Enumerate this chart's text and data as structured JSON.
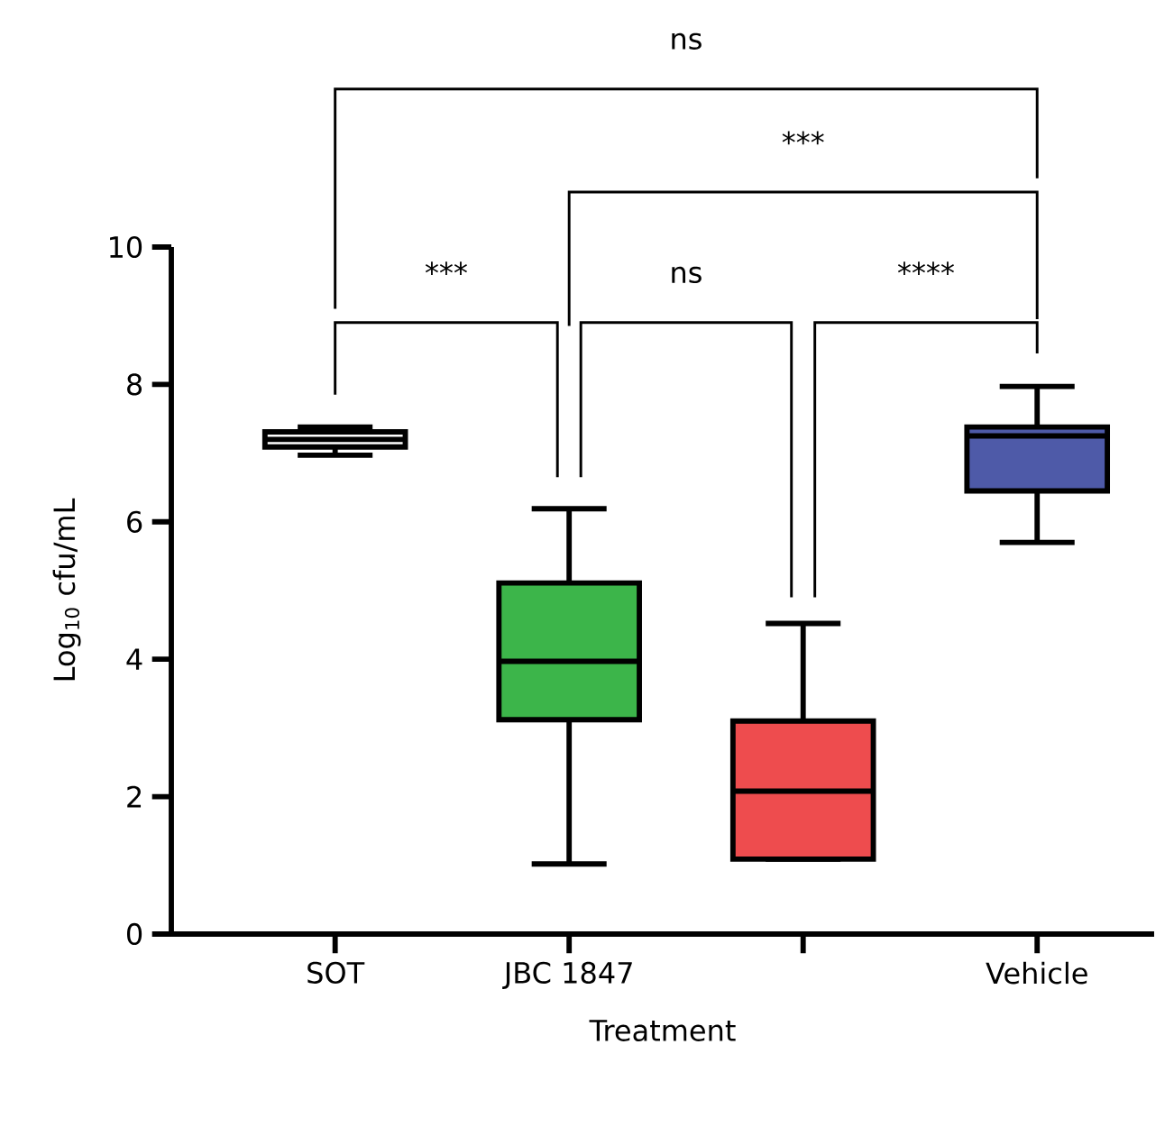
{
  "chart_data": {
    "type": "box",
    "xlabel": "Treatment",
    "ylabel": "Log$_{10}$ cfu/mL",
    "categories": [
      "SOT",
      "JBC 1847",
      null,
      "Vehicle"
    ],
    "colors": [
      "#ffffff",
      "#3cb54a",
      "#ee4c4e",
      "#4e5aa8"
    ],
    "boxes": [
      {
        "low": 6.97,
        "q1": 7.09,
        "median": 7.2,
        "q3": 7.31,
        "high": 7.38
      },
      {
        "low": 1.02,
        "q1": 3.12,
        "median": 3.97,
        "q3": 5.11,
        "high": 6.19
      },
      {
        "low": 1.09,
        "q1": 1.09,
        "median": 2.08,
        "q3": 3.1,
        "high": 4.52
      },
      {
        "low": 5.7,
        "q1": 6.45,
        "median": 7.25,
        "q3": 7.38,
        "high": 7.97
      }
    ],
    "ylim": [
      0,
      10
    ],
    "yticks": [
      0,
      2,
      4,
      6,
      8,
      10
    ],
    "grid": false,
    "annotations": [
      "ns",
      "***",
      "***",
      "ns",
      "****"
    ]
  }
}
